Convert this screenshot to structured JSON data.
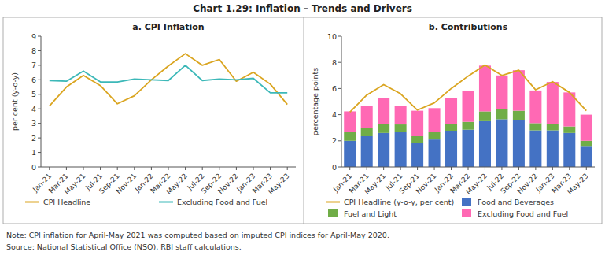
{
  "title": "Chart 1.29: Inflation – Trends and Drivers",
  "annotations": [
    "Note: CPI inflation for April-May 2021 was computed based on imputed CPI indices for April-May 2020.",
    "Source: National Statistical Office (NSO), RBI staff calculations."
  ],
  "chart_data": [
    {
      "type": "line",
      "title": "a. CPI Inflation",
      "ylabel": "per cent (y-o-y)",
      "categories": [
        "Jan-21",
        "Mar-21",
        "May-21",
        "Jul-21",
        "Sep-21",
        "Nov-21",
        "Jan-22",
        "Mar-22",
        "May-22",
        "Jul-22",
        "Sep-22",
        "Nov-22",
        "Jan-23",
        "Mar-23",
        "May-23"
      ],
      "series": [
        {
          "name": "CPI Headline",
          "color": "#DAA520",
          "values": [
            4.2,
            5.5,
            6.3,
            5.6,
            4.35,
            4.9,
            6.0,
            6.95,
            7.8,
            7.0,
            7.4,
            5.9,
            6.52,
            5.7,
            4.3
          ]
        },
        {
          "name": "Excluding Food and Fuel",
          "color": "#3CB8B8",
          "values": [
            5.95,
            5.9,
            6.6,
            5.85,
            5.85,
            6.05,
            6.0,
            5.95,
            7.0,
            5.95,
            6.05,
            6.0,
            6.1,
            5.1,
            5.1
          ]
        }
      ],
      "ylim": [
        0,
        9
      ],
      "yticks": [
        0,
        1,
        2,
        3,
        4,
        5,
        6,
        7,
        8,
        9
      ],
      "grid": false,
      "legend": "bottom"
    },
    {
      "type": "bar",
      "stacked": true,
      "title": "b. Contributions",
      "ylabel": "percentage points",
      "categories": [
        "Jan-21",
        "Mar-21",
        "May-21",
        "Jul-21",
        "Sep-21",
        "Nov-21",
        "Jan-22",
        "Mar-22",
        "May-22",
        "Jul-22",
        "Sep-22",
        "Nov-22",
        "Jan-23",
        "Mar-23",
        "May-23"
      ],
      "series": [
        {
          "name": "Food and Beverages",
          "color": "#4472C4",
          "values": [
            2.0,
            2.35,
            2.6,
            2.65,
            1.85,
            2.1,
            2.75,
            2.85,
            3.5,
            3.65,
            3.6,
            2.8,
            2.8,
            2.6,
            1.55
          ]
        },
        {
          "name": "Fuel and Light",
          "color": "#70AD47",
          "values": [
            0.65,
            0.65,
            0.7,
            0.6,
            0.5,
            0.55,
            0.55,
            0.6,
            0.75,
            0.75,
            0.7,
            0.55,
            0.5,
            0.5,
            0.45
          ]
        },
        {
          "name": "Excluding Food and Fuel",
          "color": "#FF69B4",
          "values": [
            1.6,
            1.65,
            2.0,
            1.4,
            1.95,
            1.85,
            1.95,
            2.35,
            3.5,
            2.6,
            3.1,
            2.5,
            3.2,
            2.6,
            2.0
          ]
        },
        {
          "name": "CPI Headline (y-o-y, per cent)",
          "type": "line",
          "color": "#DAA520",
          "values": [
            4.2,
            5.5,
            6.3,
            5.6,
            4.35,
            4.9,
            6.0,
            6.95,
            7.8,
            7.0,
            7.4,
            5.9,
            6.52,
            5.7,
            4.3
          ]
        }
      ],
      "ylim": [
        0,
        10
      ],
      "yticks": [
        0,
        2,
        4,
        6,
        8,
        10
      ],
      "grid": false,
      "legend": "bottom"
    }
  ]
}
